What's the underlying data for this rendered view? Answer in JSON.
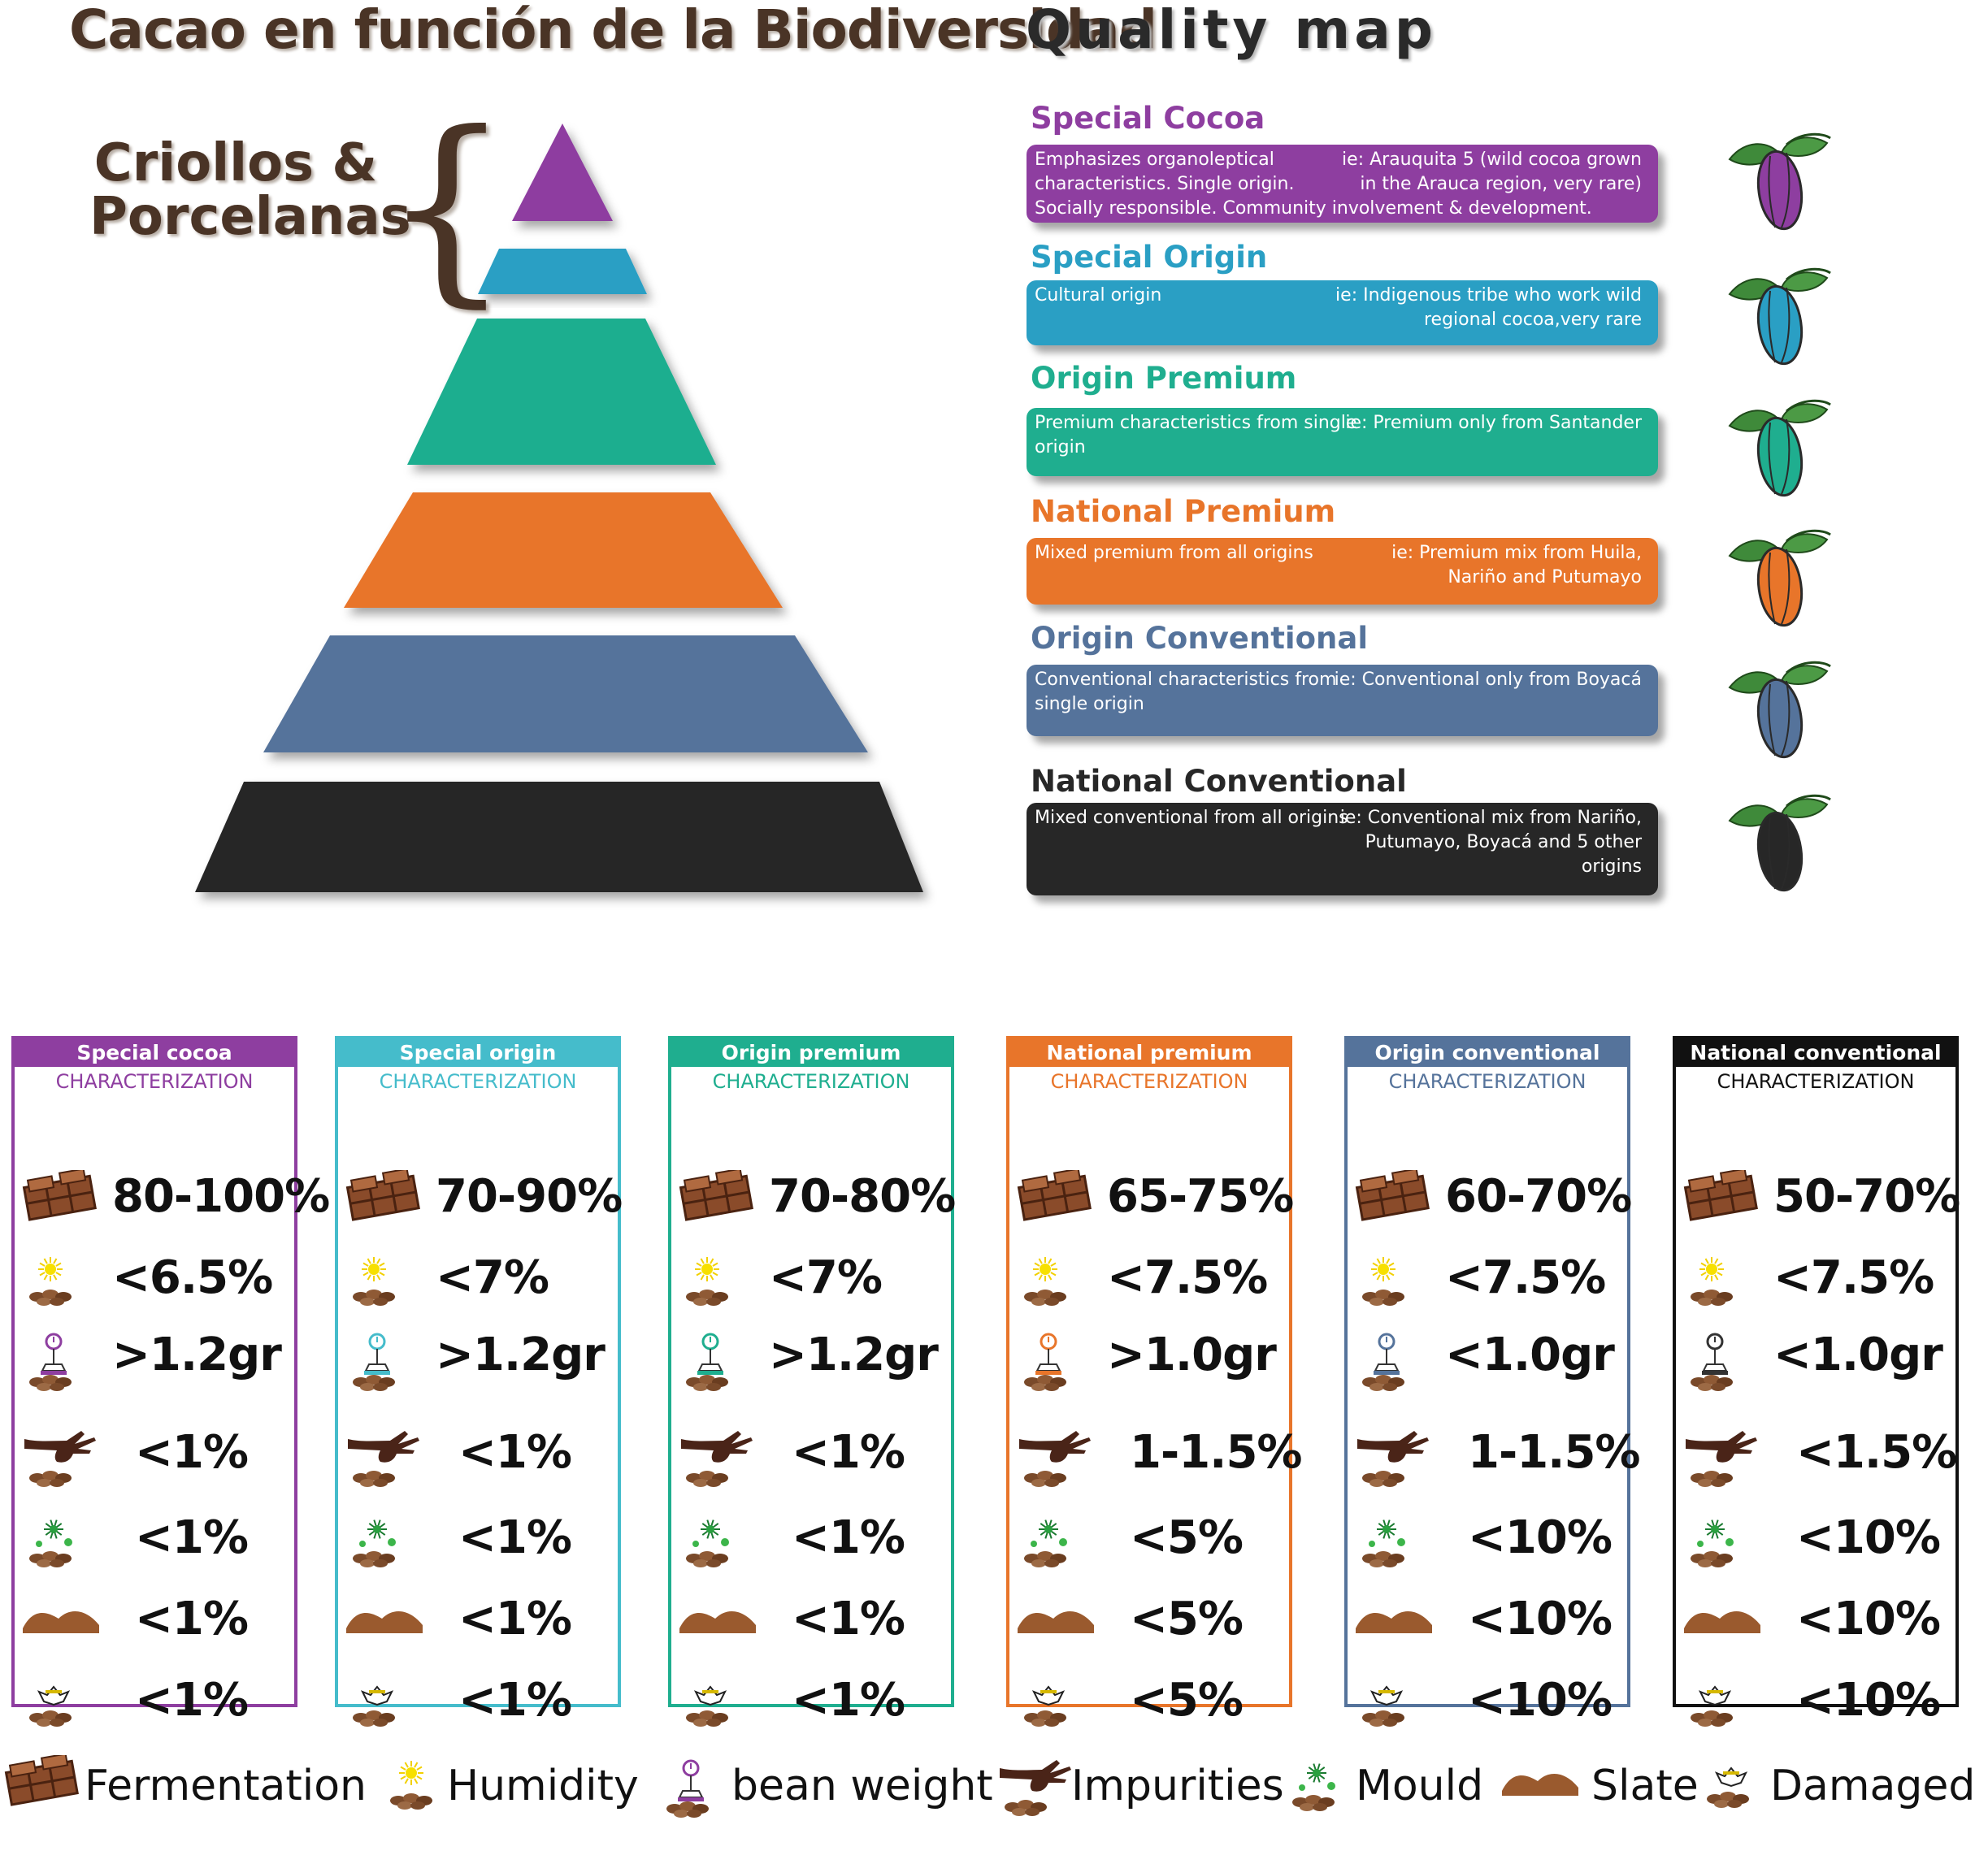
{
  "header": {
    "title_left": "Cacao en función de la Biodiversidad",
    "title_right": "Quality map"
  },
  "pyramid": {
    "label_line1": "Criollos &",
    "label_line2": "Porcelanas",
    "levels": [
      "Special Cocoa",
      "Special Origin",
      "Origin Premium",
      "National Premium",
      "Origin Conventional",
      "National Conventional"
    ],
    "colors": [
      "#8e3ea0",
      "#2a9fc4",
      "#1fae8f",
      "#e8752a",
      "#55739b",
      "#272727"
    ]
  },
  "quality": [
    {
      "title": "Special Cocoa",
      "color": "#8e3ea0",
      "desc": "Emphasizes organoleptical characteristics. Single origin.",
      "desc2": "Socially responsible. Community involvement & development.",
      "example": "ie: Arauquita 5 (wild cocoa grown in the Arauca region, very rare)"
    },
    {
      "title": "Special Origin",
      "color": "#2a9fc4",
      "desc": "Cultural origin",
      "desc2": "",
      "example": "ie: Indigenous tribe who work wild regional cocoa,very rare"
    },
    {
      "title": "Origin Premium",
      "color": "#1fae8f",
      "desc": "Premium characteristics from single origin",
      "desc2": "",
      "example": "ie: Premium only from Santander"
    },
    {
      "title": "National Premium",
      "color": "#e8752a",
      "desc": "Mixed premium from all origins",
      "desc2": "",
      "example": "ie: Premium mix from Huila, Nariño and Putumayo"
    },
    {
      "title": "Origin Conventional",
      "color": "#55739b",
      "desc": "Conventional characteristics from single origin",
      "desc2": "",
      "example": "ie: Conventional only from Boyacá"
    },
    {
      "title": "National Conventional",
      "color": "#272727",
      "desc": "Mixed conventional from all origins",
      "desc2": "",
      "example": "ie: Conventional mix from Nariño, Putumayo, Boyacá and 5 other origins"
    }
  ],
  "cards": [
    {
      "title": "Special cocoa",
      "color": "#8e3ea0",
      "char": "CHARACTERIZATION",
      "values": [
        "80-100%",
        "<6.5%",
        ">1.2gr",
        "<1%",
        "<1%",
        "<1%",
        "<1%"
      ]
    },
    {
      "title": "Special origin",
      "color": "#45bccb",
      "char": "CHARACTERIZATION",
      "values": [
        "70-90%",
        "<7%",
        ">1.2gr",
        "<1%",
        "<1%",
        "<1%",
        "<1%"
      ]
    },
    {
      "title": "Origin premium",
      "color": "#1fae8f",
      "char": "CHARACTERIZATION",
      "values": [
        "70-80%",
        "<7%",
        ">1.2gr",
        "<1%",
        "<1%",
        "<1%",
        "<1%"
      ]
    },
    {
      "title": "National premium",
      "color": "#e8752a",
      "char": "CHARACTERIZATION",
      "values": [
        "65-75%",
        "<7.5%",
        ">1.0gr",
        "1-1.5%",
        "<5%",
        "<5%",
        "<5%"
      ]
    },
    {
      "title": "Origin conventional",
      "color": "#55739b",
      "char": "CHARACTERIZATION",
      "values": [
        "60-70%",
        "<7.5%",
        "<1.0gr",
        "1-1.5%",
        "<10%",
        "<10%",
        "<10%"
      ]
    },
    {
      "title": "National conventional",
      "color": "#111111",
      "char": "CHARACTERIZATION",
      "values": [
        "50-70%",
        "<7.5%",
        "<1.0gr",
        "<1.5%",
        "<10%",
        "<10%",
        "<10%"
      ]
    }
  ],
  "legend": {
    "fermentation": "Fermentation",
    "humidity": "Humidity",
    "bean_weight": "bean weight",
    "impurities": "Impurities",
    "mould": "Mould",
    "slate": "Slate",
    "damaged": "Damaged"
  },
  "icons": [
    "chocolate-bar-icon",
    "sun-humidity-icon",
    "scale-weight-icon",
    "hand-impurities-icon",
    "mould-icon",
    "slate-icon",
    "damaged-bean-icon"
  ]
}
